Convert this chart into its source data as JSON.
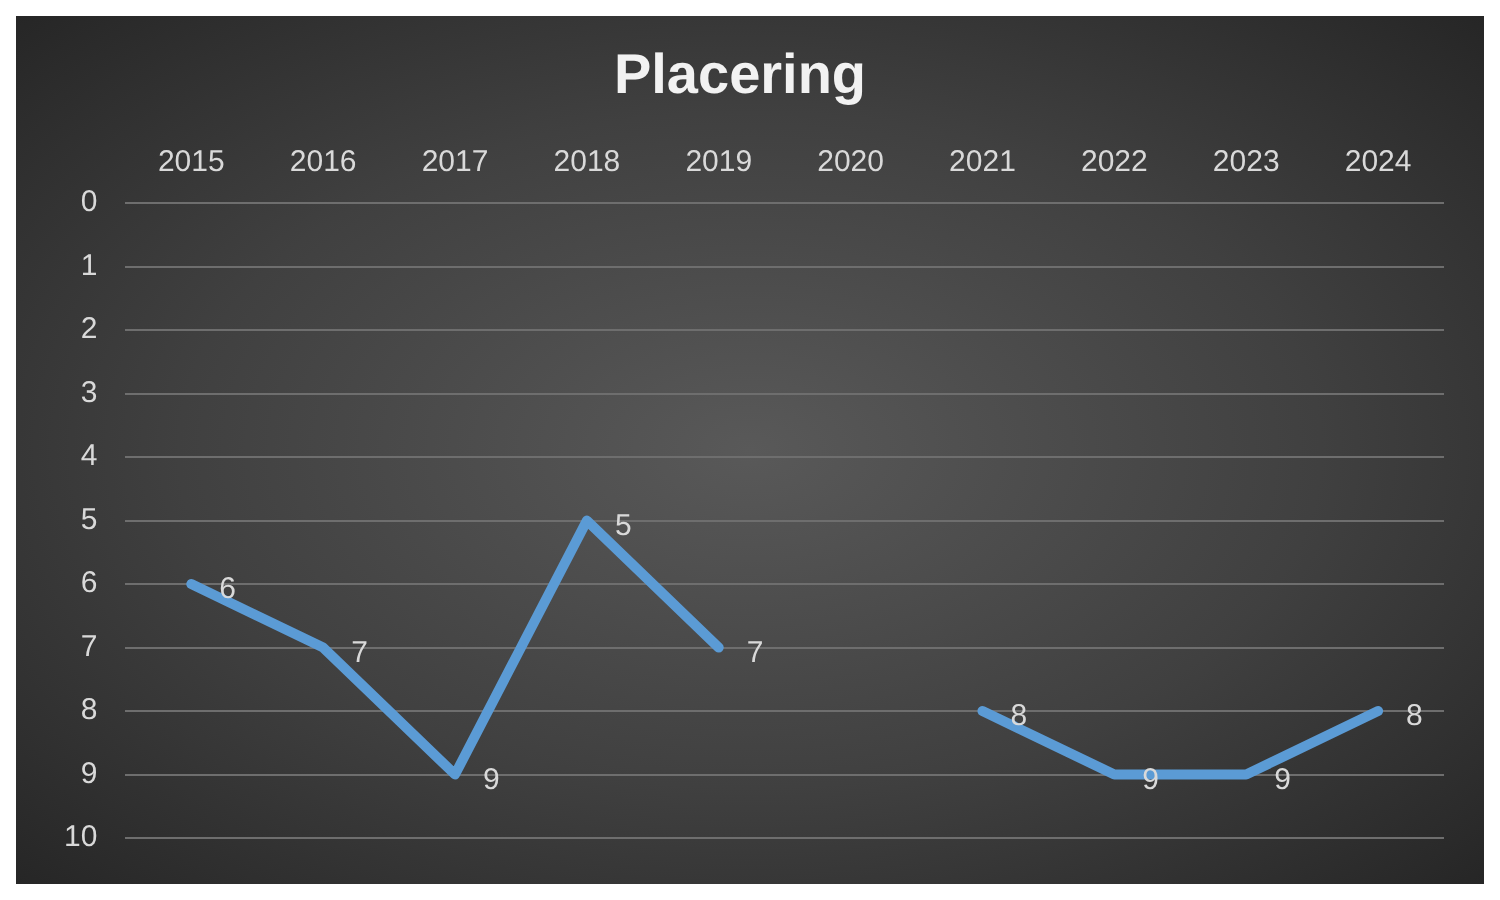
{
  "chart_data": {
    "type": "line",
    "title": "Placering",
    "categories": [
      "2015",
      "2016",
      "2017",
      "2018",
      "2019",
      "2020",
      "2021",
      "2022",
      "2023",
      "2024"
    ],
    "series": [
      {
        "color": "#5b9bd5",
        "values": [
          6,
          7,
          9,
          5,
          7,
          null,
          8,
          9,
          9,
          8
        ]
      }
    ],
    "ylim": [
      10,
      0
    ],
    "yticks": [
      0,
      1,
      2,
      3,
      4,
      5,
      6,
      7,
      8,
      9,
      10
    ],
    "grid": "y",
    "legend": false,
    "marker": "none",
    "line_style": "solid",
    "data_labels": true
  }
}
